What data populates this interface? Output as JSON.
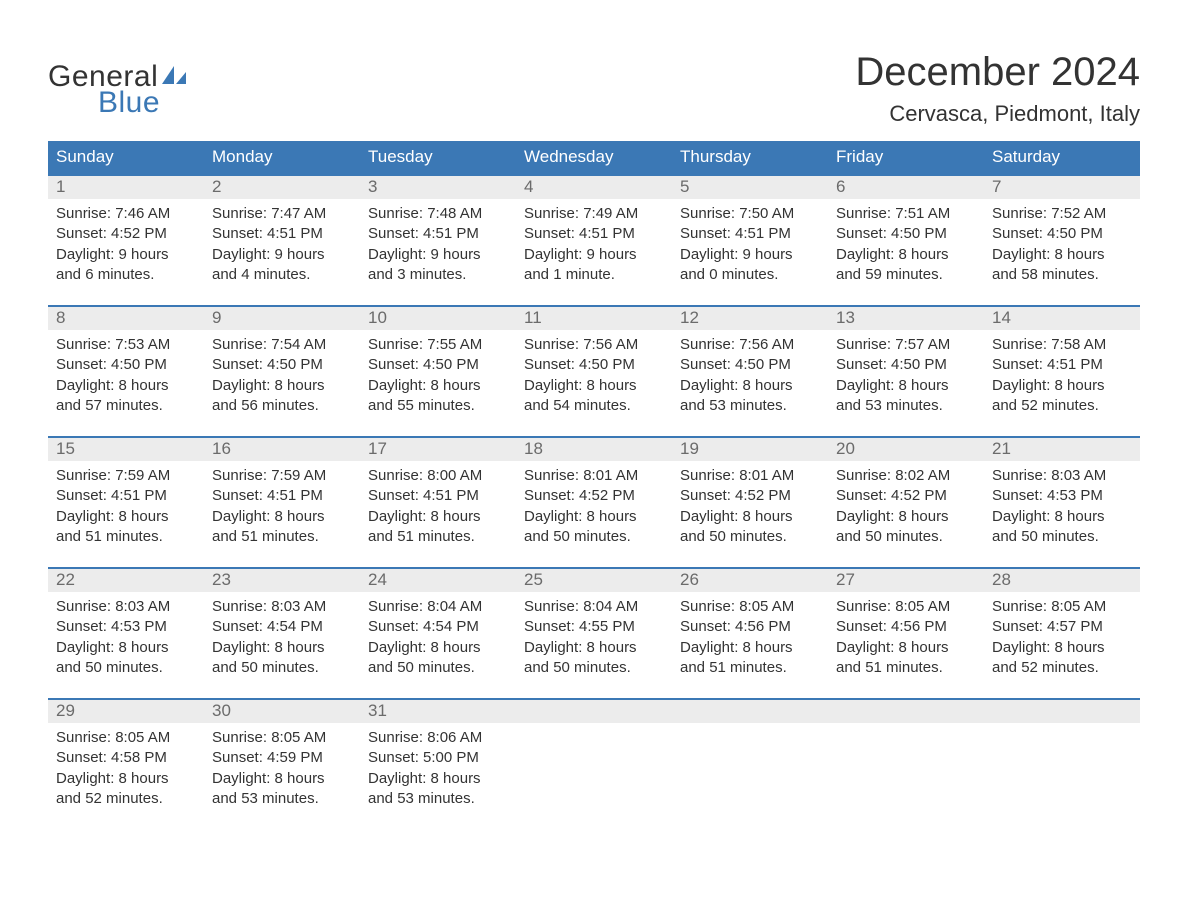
{
  "logo": {
    "text1": "General",
    "text2": "Blue",
    "sail_color": "#3b78b5"
  },
  "title": "December 2024",
  "location": "Cervasca, Piedmont, Italy",
  "colors": {
    "header_bg": "#3b78b5",
    "header_text": "#ffffff",
    "num_bg": "#ececec",
    "num_text": "#6b6b6b",
    "body_text": "#333333",
    "row_border": "#3b78b5",
    "page_bg": "#ffffff"
  },
  "daysOfWeek": [
    "Sunday",
    "Monday",
    "Tuesday",
    "Wednesday",
    "Thursday",
    "Friday",
    "Saturday"
  ],
  "weeks": [
    [
      {
        "n": "1",
        "sunrise": "Sunrise: 7:46 AM",
        "sunset": "Sunset: 4:52 PM",
        "d1": "Daylight: 9 hours",
        "d2": "and 6 minutes."
      },
      {
        "n": "2",
        "sunrise": "Sunrise: 7:47 AM",
        "sunset": "Sunset: 4:51 PM",
        "d1": "Daylight: 9 hours",
        "d2": "and 4 minutes."
      },
      {
        "n": "3",
        "sunrise": "Sunrise: 7:48 AM",
        "sunset": "Sunset: 4:51 PM",
        "d1": "Daylight: 9 hours",
        "d2": "and 3 minutes."
      },
      {
        "n": "4",
        "sunrise": "Sunrise: 7:49 AM",
        "sunset": "Sunset: 4:51 PM",
        "d1": "Daylight: 9 hours",
        "d2": "and 1 minute."
      },
      {
        "n": "5",
        "sunrise": "Sunrise: 7:50 AM",
        "sunset": "Sunset: 4:51 PM",
        "d1": "Daylight: 9 hours",
        "d2": "and 0 minutes."
      },
      {
        "n": "6",
        "sunrise": "Sunrise: 7:51 AM",
        "sunset": "Sunset: 4:50 PM",
        "d1": "Daylight: 8 hours",
        "d2": "and 59 minutes."
      },
      {
        "n": "7",
        "sunrise": "Sunrise: 7:52 AM",
        "sunset": "Sunset: 4:50 PM",
        "d1": "Daylight: 8 hours",
        "d2": "and 58 minutes."
      }
    ],
    [
      {
        "n": "8",
        "sunrise": "Sunrise: 7:53 AM",
        "sunset": "Sunset: 4:50 PM",
        "d1": "Daylight: 8 hours",
        "d2": "and 57 minutes."
      },
      {
        "n": "9",
        "sunrise": "Sunrise: 7:54 AM",
        "sunset": "Sunset: 4:50 PM",
        "d1": "Daylight: 8 hours",
        "d2": "and 56 minutes."
      },
      {
        "n": "10",
        "sunrise": "Sunrise: 7:55 AM",
        "sunset": "Sunset: 4:50 PM",
        "d1": "Daylight: 8 hours",
        "d2": "and 55 minutes."
      },
      {
        "n": "11",
        "sunrise": "Sunrise: 7:56 AM",
        "sunset": "Sunset: 4:50 PM",
        "d1": "Daylight: 8 hours",
        "d2": "and 54 minutes."
      },
      {
        "n": "12",
        "sunrise": "Sunrise: 7:56 AM",
        "sunset": "Sunset: 4:50 PM",
        "d1": "Daylight: 8 hours",
        "d2": "and 53 minutes."
      },
      {
        "n": "13",
        "sunrise": "Sunrise: 7:57 AM",
        "sunset": "Sunset: 4:50 PM",
        "d1": "Daylight: 8 hours",
        "d2": "and 53 minutes."
      },
      {
        "n": "14",
        "sunrise": "Sunrise: 7:58 AM",
        "sunset": "Sunset: 4:51 PM",
        "d1": "Daylight: 8 hours",
        "d2": "and 52 minutes."
      }
    ],
    [
      {
        "n": "15",
        "sunrise": "Sunrise: 7:59 AM",
        "sunset": "Sunset: 4:51 PM",
        "d1": "Daylight: 8 hours",
        "d2": "and 51 minutes."
      },
      {
        "n": "16",
        "sunrise": "Sunrise: 7:59 AM",
        "sunset": "Sunset: 4:51 PM",
        "d1": "Daylight: 8 hours",
        "d2": "and 51 minutes."
      },
      {
        "n": "17",
        "sunrise": "Sunrise: 8:00 AM",
        "sunset": "Sunset: 4:51 PM",
        "d1": "Daylight: 8 hours",
        "d2": "and 51 minutes."
      },
      {
        "n": "18",
        "sunrise": "Sunrise: 8:01 AM",
        "sunset": "Sunset: 4:52 PM",
        "d1": "Daylight: 8 hours",
        "d2": "and 50 minutes."
      },
      {
        "n": "19",
        "sunrise": "Sunrise: 8:01 AM",
        "sunset": "Sunset: 4:52 PM",
        "d1": "Daylight: 8 hours",
        "d2": "and 50 minutes."
      },
      {
        "n": "20",
        "sunrise": "Sunrise: 8:02 AM",
        "sunset": "Sunset: 4:52 PM",
        "d1": "Daylight: 8 hours",
        "d2": "and 50 minutes."
      },
      {
        "n": "21",
        "sunrise": "Sunrise: 8:03 AM",
        "sunset": "Sunset: 4:53 PM",
        "d1": "Daylight: 8 hours",
        "d2": "and 50 minutes."
      }
    ],
    [
      {
        "n": "22",
        "sunrise": "Sunrise: 8:03 AM",
        "sunset": "Sunset: 4:53 PM",
        "d1": "Daylight: 8 hours",
        "d2": "and 50 minutes."
      },
      {
        "n": "23",
        "sunrise": "Sunrise: 8:03 AM",
        "sunset": "Sunset: 4:54 PM",
        "d1": "Daylight: 8 hours",
        "d2": "and 50 minutes."
      },
      {
        "n": "24",
        "sunrise": "Sunrise: 8:04 AM",
        "sunset": "Sunset: 4:54 PM",
        "d1": "Daylight: 8 hours",
        "d2": "and 50 minutes."
      },
      {
        "n": "25",
        "sunrise": "Sunrise: 8:04 AM",
        "sunset": "Sunset: 4:55 PM",
        "d1": "Daylight: 8 hours",
        "d2": "and 50 minutes."
      },
      {
        "n": "26",
        "sunrise": "Sunrise: 8:05 AM",
        "sunset": "Sunset: 4:56 PM",
        "d1": "Daylight: 8 hours",
        "d2": "and 51 minutes."
      },
      {
        "n": "27",
        "sunrise": "Sunrise: 8:05 AM",
        "sunset": "Sunset: 4:56 PM",
        "d1": "Daylight: 8 hours",
        "d2": "and 51 minutes."
      },
      {
        "n": "28",
        "sunrise": "Sunrise: 8:05 AM",
        "sunset": "Sunset: 4:57 PM",
        "d1": "Daylight: 8 hours",
        "d2": "and 52 minutes."
      }
    ],
    [
      {
        "n": "29",
        "sunrise": "Sunrise: 8:05 AM",
        "sunset": "Sunset: 4:58 PM",
        "d1": "Daylight: 8 hours",
        "d2": "and 52 minutes."
      },
      {
        "n": "30",
        "sunrise": "Sunrise: 8:05 AM",
        "sunset": "Sunset: 4:59 PM",
        "d1": "Daylight: 8 hours",
        "d2": "and 53 minutes."
      },
      {
        "n": "31",
        "sunrise": "Sunrise: 8:06 AM",
        "sunset": "Sunset: 5:00 PM",
        "d1": "Daylight: 8 hours",
        "d2": "and 53 minutes."
      },
      null,
      null,
      null,
      null
    ]
  ]
}
